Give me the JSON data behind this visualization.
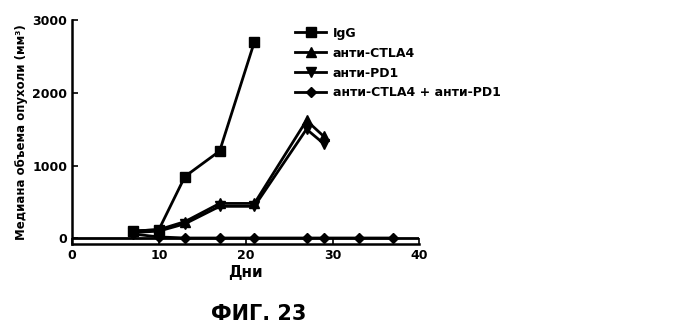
{
  "series": [
    {
      "label": "IgG",
      "x": [
        7,
        10,
        13,
        17,
        21
      ],
      "y": [
        100,
        120,
        850,
        1200,
        2700
      ],
      "marker": "s",
      "markersize": 7,
      "linestyle": "-",
      "linewidth": 2
    },
    {
      "label": "анти-CTLA4",
      "x": [
        7,
        10,
        13,
        17,
        21,
        27,
        29
      ],
      "y": [
        100,
        120,
        230,
        480,
        480,
        1620,
        1400
      ],
      "marker": "^",
      "markersize": 7,
      "linestyle": "-",
      "linewidth": 2
    },
    {
      "label": "анти-PD1",
      "x": [
        7,
        10,
        13,
        17,
        21,
        27,
        29
      ],
      "y": [
        80,
        100,
        200,
        440,
        440,
        1500,
        1300
      ],
      "marker": "v",
      "markersize": 7,
      "linestyle": "-",
      "linewidth": 2
    },
    {
      "label": "анти-CTLA4 + анти-PD1",
      "x": [
        7,
        10,
        13,
        17,
        21,
        27,
        29,
        33,
        37
      ],
      "y": [
        60,
        20,
        5,
        5,
        5,
        5,
        5,
        5,
        5
      ],
      "marker": "D",
      "markersize": 5,
      "linestyle": "-",
      "linewidth": 2
    }
  ],
  "xlabel": "Дни",
  "ylabel": "Медиана объема опухоли (мм³)",
  "figure_label": "ФИГ. 23",
  "xlim": [
    0,
    40
  ],
  "ylim": [
    -80,
    3000
  ],
  "yticks": [
    0,
    1000,
    2000,
    3000
  ],
  "xticks": [
    0,
    10,
    20,
    30,
    40
  ],
  "background_color": "#ffffff",
  "hline_y": 0,
  "color": "#000000"
}
